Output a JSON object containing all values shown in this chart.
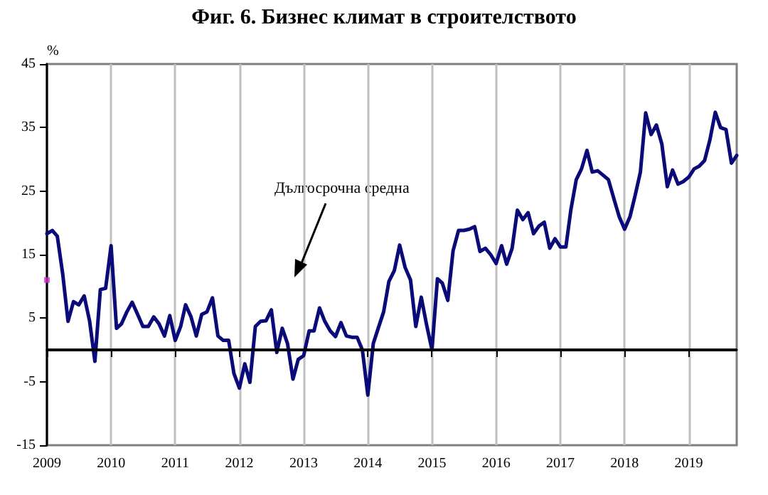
{
  "chart_data": {
    "type": "line",
    "title": "Фиг. 6. Бизнес климат в строителството",
    "ylabel": "%",
    "x": [
      "2009-01",
      "2009-02",
      "2009-03",
      "2009-04",
      "2009-05",
      "2009-06",
      "2009-07",
      "2009-08",
      "2009-09",
      "2009-10",
      "2009-11",
      "2009-12",
      "2010-01",
      "2010-02",
      "2010-03",
      "2010-04",
      "2010-05",
      "2010-06",
      "2010-07",
      "2010-08",
      "2010-09",
      "2010-10",
      "2010-11",
      "2010-12",
      "2011-01",
      "2011-02",
      "2011-03",
      "2011-04",
      "2011-05",
      "2011-06",
      "2011-07",
      "2011-08",
      "2011-09",
      "2011-10",
      "2011-11",
      "2011-12",
      "2012-01",
      "2012-02",
      "2012-03",
      "2012-04",
      "2012-05",
      "2012-06",
      "2012-07",
      "2012-08",
      "2012-09",
      "2012-10",
      "2012-11",
      "2012-12",
      "2013-01",
      "2013-02",
      "2013-03",
      "2013-04",
      "2013-05",
      "2013-06",
      "2013-07",
      "2013-08",
      "2013-09",
      "2013-10",
      "2013-11",
      "2013-12",
      "2014-01",
      "2014-02",
      "2014-03",
      "2014-04",
      "2014-05",
      "2014-06",
      "2014-07",
      "2014-08",
      "2014-09",
      "2014-10",
      "2014-11",
      "2014-12",
      "2015-01",
      "2015-02",
      "2015-03",
      "2015-04",
      "2015-05",
      "2015-06",
      "2015-07",
      "2015-08",
      "2015-09",
      "2015-10",
      "2015-11",
      "2015-12",
      "2016-01",
      "2016-02",
      "2016-03",
      "2016-04",
      "2016-05",
      "2016-06",
      "2016-07",
      "2016-08",
      "2016-09",
      "2016-10",
      "2016-11",
      "2016-12",
      "2017-01",
      "2017-02",
      "2017-03",
      "2017-04",
      "2017-05",
      "2017-06",
      "2017-07",
      "2017-08",
      "2017-09",
      "2017-10",
      "2017-11",
      "2017-12",
      "2018-01",
      "2018-02",
      "2018-03",
      "2018-04",
      "2018-05",
      "2018-06",
      "2018-07",
      "2018-08",
      "2018-09",
      "2018-10",
      "2018-11",
      "2018-12",
      "2019-01",
      "2019-02",
      "2019-03",
      "2019-04",
      "2019-05",
      "2019-06",
      "2019-07",
      "2019-08",
      "2019-09",
      "2019-10"
    ],
    "series": [
      {
        "color": "#0a0a78",
        "values": [
          18.3,
          18.8,
          17.9,
          11.9,
          4.5,
          7.6,
          7.1,
          8.5,
          4.5,
          -1.8,
          9.5,
          9.7,
          16.4,
          3.4,
          4.1,
          6,
          7.5,
          5.6,
          3.7,
          3.7,
          5.2,
          4.1,
          2.2,
          5.4,
          1.5,
          3.7,
          7.1,
          5.2,
          2.2,
          5.6,
          6,
          8.2,
          2.2,
          1.5,
          1.5,
          -3.7,
          -6.0,
          -2.2,
          -5.1,
          3.7,
          4.5,
          4.6,
          6.3,
          -0.4,
          3.4,
          1,
          -4.6,
          -1.5,
          -0.9,
          3,
          3,
          6.6,
          4.5,
          3,
          2.1,
          4.3,
          2.2,
          2,
          2,
          0,
          -7.1,
          1,
          3.4,
          6,
          10.8,
          12.5,
          16.5,
          13,
          11,
          3.7,
          8.3,
          4,
          0,
          11.2,
          10.5,
          7.8,
          15.6,
          18.8,
          18.8,
          19,
          19.4,
          15.5,
          16,
          15,
          13.6,
          16.4,
          13.5,
          16,
          22,
          20.5,
          21.6,
          18.3,
          19.5,
          20.1,
          16,
          17.5,
          16.2,
          16.2,
          22,
          26.8,
          28.5,
          31.4,
          28,
          28.2,
          27.5,
          26.8,
          23.8,
          21,
          19,
          21,
          24.2,
          28,
          37.3,
          33.9,
          35.4,
          32.4,
          25.7,
          28.3,
          26.1,
          26.5,
          27.2,
          28.5,
          28.9,
          29.8,
          33,
          37.4,
          35,
          34.7,
          29.4,
          30.6
        ]
      },
      {
        "type": "scatter",
        "color": "#cc33cc",
        "x": [
          "2009-01"
        ],
        "values": [
          11
        ],
        "marker": "square"
      }
    ],
    "xlim": [
      "2009-01",
      "2019-10"
    ],
    "xticks": [
      "2009",
      "2010",
      "2011",
      "2012",
      "2013",
      "2014",
      "2015",
      "2016",
      "2017",
      "2018",
      "2019"
    ],
    "ylim": [
      -15,
      45
    ],
    "yticks": [
      -15,
      -5,
      5,
      15,
      25,
      35,
      45
    ],
    "grid": "x",
    "marker": "none",
    "line_style": "solid",
    "ref_lines": [
      {
        "axis": "y",
        "value": 0,
        "label": "Дългосрочна средна",
        "color": "#000000"
      }
    ]
  }
}
